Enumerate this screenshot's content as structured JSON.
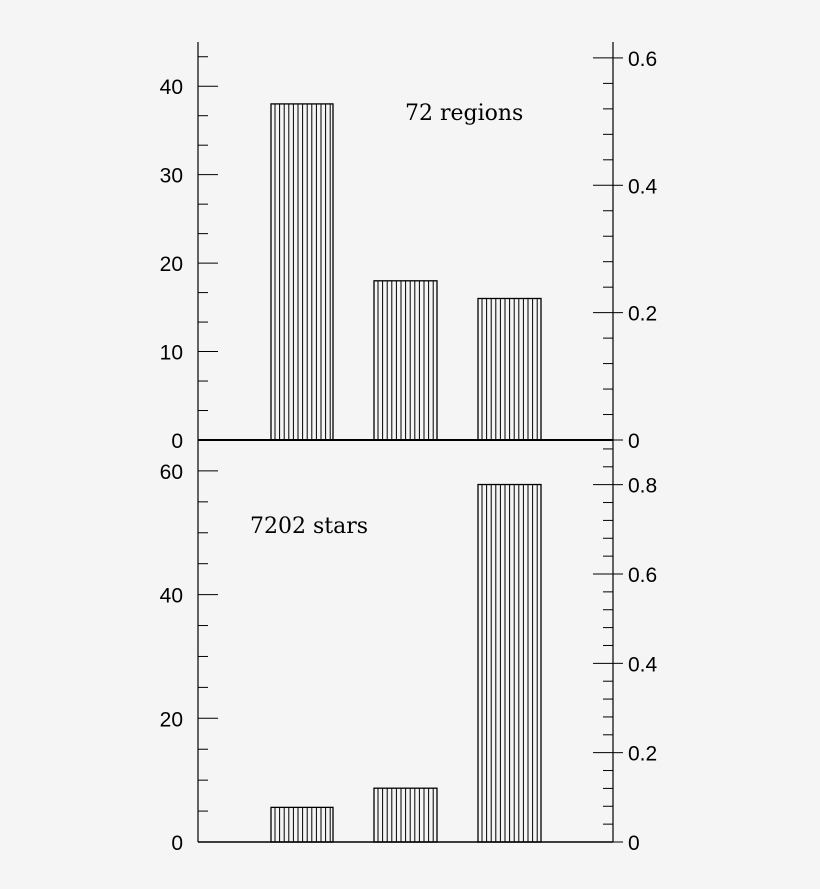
{
  "chart_data": [
    {
      "type": "bar",
      "panel": "top",
      "annotation": "72 regions",
      "values": [
        38,
        18,
        16
      ],
      "ylim": [
        0,
        45
      ],
      "yticks_left": [
        "0",
        "10",
        "20",
        "30",
        "40"
      ],
      "ylim_right": [
        0,
        0.625
      ],
      "yticks_right": [
        "0",
        "0.2",
        "0.4",
        "0.6"
      ],
      "bar_fill": "vertical-hatch",
      "grid": false
    },
    {
      "type": "bar",
      "panel": "bottom",
      "annotation": "7202 stars",
      "values": [
        5.6,
        8.7,
        57.8
      ],
      "ylim": [
        0,
        65
      ],
      "yticks_left": [
        "0",
        "20",
        "40",
        "60"
      ],
      "ylim_right": [
        0,
        0.9
      ],
      "yticks_right": [
        "0",
        "0.2",
        "0.4",
        "0.6",
        "0.8"
      ],
      "bar_fill": "vertical-hatch",
      "grid": false
    }
  ],
  "colors": {
    "background": "#f5f5f5",
    "ink": "#000000"
  }
}
